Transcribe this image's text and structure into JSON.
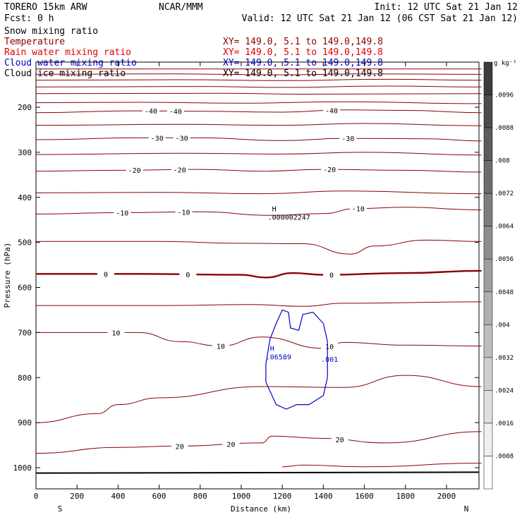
{
  "header": {
    "model": "TORERO  15km ARW",
    "center": "NCAR/MMM",
    "init": "Init: 12 UTC Sat 21 Jan 12",
    "fcst": "Fcst:    0 h",
    "valid": "Valid: 12 UTC Sat 21 Jan 12 (06 CST Sat 21 Jan 12)"
  },
  "legend": [
    {
      "name": "Snow mixing ratio",
      "xy": "",
      "color": "#000000"
    },
    {
      "name": "Temperature",
      "xy": "XY= 149.0,  5.1 to 149.0,149.8",
      "color": "#8b0000"
    },
    {
      "name": "Rain water mixing ratio",
      "xy": "XY= 149.0,  5.1 to 149.0,149.8",
      "color": "#e00000"
    },
    {
      "name": "Cloud water mixing ratio",
      "xy": "XY= 149.0,  5.1 to 149.0,149.8",
      "color": "#0000cc"
    },
    {
      "name": "Cloud ice mixing ratio",
      "xy": "XY= 149.0,  5.1 to 149.0,149.8",
      "color": "#000000"
    }
  ],
  "chart_data": {
    "type": "contour",
    "xlabel": "Distance (km)",
    "ylabel": "Pressure (hPa)",
    "xlim": [
      0,
      2170
    ],
    "ylim": [
      100,
      1050
    ],
    "x_ticks": [
      0,
      200,
      400,
      600,
      800,
      1000,
      1200,
      1400,
      1600,
      1800,
      2000
    ],
    "y_ticks": [
      200,
      300,
      400,
      500,
      600,
      700,
      800,
      900,
      1000
    ],
    "x_end_labels": {
      "left": "S",
      "right": "N"
    },
    "temperature_contours": [
      {
        "label": "",
        "points": [
          [
            0,
            115
          ],
          [
            2170,
            115
          ]
        ]
      },
      {
        "label": "",
        "points": [
          [
            0,
            127
          ],
          [
            600,
            126
          ],
          [
            1200,
            128
          ],
          [
            1600,
            126
          ],
          [
            2170,
            127
          ]
        ]
      },
      {
        "label": "",
        "points": [
          [
            0,
            140
          ],
          [
            700,
            139
          ],
          [
            1200,
            141
          ],
          [
            1700,
            138
          ],
          [
            2170,
            140
          ]
        ]
      },
      {
        "label": "",
        "points": [
          [
            0,
            155
          ],
          [
            800,
            154
          ],
          [
            1200,
            156
          ],
          [
            1700,
            153
          ],
          [
            2170,
            155
          ]
        ]
      },
      {
        "label": "",
        "points": [
          [
            0,
            170
          ],
          [
            900,
            169
          ],
          [
            1300,
            171
          ],
          [
            2170,
            170
          ]
        ]
      },
      {
        "label": "",
        "points": [
          [
            0,
            190
          ],
          [
            500,
            189
          ],
          [
            1000,
            191
          ],
          [
            1500,
            188
          ],
          [
            2170,
            192
          ]
        ]
      },
      {
        "label": "-40",
        "labels_at": [
          560,
          680,
          1440
        ],
        "points": [
          [
            0,
            212
          ],
          [
            500,
            208
          ],
          [
            800,
            209
          ],
          [
            1200,
            211
          ],
          [
            1500,
            206
          ],
          [
            1800,
            207
          ],
          [
            2170,
            212
          ]
        ]
      },
      {
        "label": "",
        "points": [
          [
            0,
            240
          ],
          [
            700,
            238
          ],
          [
            1200,
            240
          ],
          [
            1600,
            236
          ],
          [
            2170,
            241
          ]
        ]
      },
      {
        "label": "-30",
        "labels_at": [
          590,
          710,
          1520
        ],
        "points": [
          [
            0,
            272
          ],
          [
            500,
            268
          ],
          [
            800,
            268
          ],
          [
            1200,
            274
          ],
          [
            1500,
            269
          ],
          [
            1900,
            270
          ],
          [
            2170,
            275
          ]
        ]
      },
      {
        "label": "",
        "points": [
          [
            0,
            305
          ],
          [
            700,
            302
          ],
          [
            1200,
            304
          ],
          [
            1600,
            300
          ],
          [
            2170,
            306
          ]
        ]
      },
      {
        "label": "-20",
        "labels_at": [
          480,
          700,
          1430
        ],
        "points": [
          [
            0,
            342
          ],
          [
            400,
            340
          ],
          [
            800,
            338
          ],
          [
            1100,
            342
          ],
          [
            1400,
            338
          ],
          [
            1800,
            340
          ],
          [
            2170,
            344
          ]
        ]
      },
      {
        "label": "",
        "points": [
          [
            0,
            390
          ],
          [
            600,
            389
          ],
          [
            1100,
            392
          ],
          [
            1500,
            386
          ],
          [
            2170,
            392
          ]
        ]
      },
      {
        "label": "-10",
        "labels_at": [
          420,
          720,
          1570
        ],
        "points": [
          [
            0,
            437
          ],
          [
            400,
            434
          ],
          [
            800,
            432
          ],
          [
            1150,
            440
          ],
          [
            1400,
            436
          ],
          [
            1560,
            425
          ],
          [
            1800,
            422
          ],
          [
            2170,
            428
          ]
        ]
      },
      {
        "label": "",
        "points": [
          [
            0,
            498
          ],
          [
            600,
            498
          ],
          [
            1000,
            502
          ],
          [
            1300,
            503
          ],
          [
            1530,
            526
          ],
          [
            1650,
            508
          ],
          [
            1900,
            495
          ],
          [
            2170,
            498
          ]
        ]
      },
      {
        "label": "0",
        "labels_at": [
          340,
          740,
          1440
        ],
        "points": [
          [
            0,
            570
          ],
          [
            500,
            570
          ],
          [
            1000,
            572
          ],
          [
            1120,
            578
          ],
          [
            1250,
            568
          ],
          [
            1400,
            572
          ],
          [
            1800,
            568
          ],
          [
            2170,
            563
          ]
        ]
      },
      {
        "label": "",
        "points": [
          [
            0,
            640
          ],
          [
            600,
            640
          ],
          [
            1050,
            638
          ],
          [
            1300,
            642
          ],
          [
            1500,
            635
          ],
          [
            2170,
            632
          ]
        ]
      },
      {
        "label": "10",
        "labels_at": [
          390,
          900,
          1430
        ],
        "points": [
          [
            0,
            700
          ],
          [
            500,
            700
          ],
          [
            700,
            720
          ],
          [
            900,
            730
          ],
          [
            1100,
            710
          ],
          [
            1400,
            735
          ],
          [
            1500,
            722
          ],
          [
            1800,
            728
          ],
          [
            2170,
            730
          ]
        ]
      },
      {
        "label": "",
        "points": [
          [
            0,
            900
          ],
          [
            300,
            880
          ],
          [
            400,
            860
          ],
          [
            600,
            845
          ],
          [
            1100,
            820
          ],
          [
            1500,
            822
          ],
          [
            1800,
            795
          ],
          [
            2170,
            820
          ]
        ]
      },
      {
        "label": "20",
        "labels_at": [
          700,
          950,
          1480
        ],
        "points": [
          [
            0,
            968
          ],
          [
            400,
            955
          ],
          [
            700,
            952
          ],
          [
            1100,
            945
          ],
          [
            1150,
            930
          ],
          [
            1400,
            935
          ],
          [
            1700,
            945
          ],
          [
            2170,
            920
          ]
        ]
      },
      {
        "label": "",
        "points": [
          [
            1200,
            998
          ],
          [
            1300,
            994
          ],
          [
            1600,
            998
          ],
          [
            2170,
            990
          ]
        ]
      }
    ],
    "cloud_water_contour": {
      "label": ".001",
      "points": [
        [
          1120,
          770
        ],
        [
          1140,
          715
        ],
        [
          1170,
          680
        ],
        [
          1200,
          650
        ],
        [
          1230,
          655
        ],
        [
          1240,
          690
        ],
        [
          1280,
          695
        ],
        [
          1300,
          660
        ],
        [
          1350,
          655
        ],
        [
          1400,
          680
        ],
        [
          1420,
          720
        ],
        [
          1420,
          800
        ],
        [
          1400,
          840
        ],
        [
          1330,
          860
        ],
        [
          1270,
          860
        ],
        [
          1220,
          870
        ],
        [
          1170,
          860
        ],
        [
          1120,
          810
        ]
      ]
    },
    "annotations": [
      {
        "text": "H",
        "value": ".000002247",
        "pressure": 450,
        "distance": 1150,
        "color": "#000000"
      },
      {
        "text": "H",
        "value": ".06589",
        "pressure": 760,
        "distance": 1140,
        "color": "#0000cc"
      }
    ],
    "colorbar": {
      "unit": "g kg⁻¹",
      "ticks": [
        ".0096",
        ".0088",
        ".008",
        ".0072",
        ".0064",
        ".0056",
        ".0048",
        ".004",
        ".0032",
        ".0024",
        ".0016",
        ".0008"
      ]
    }
  }
}
